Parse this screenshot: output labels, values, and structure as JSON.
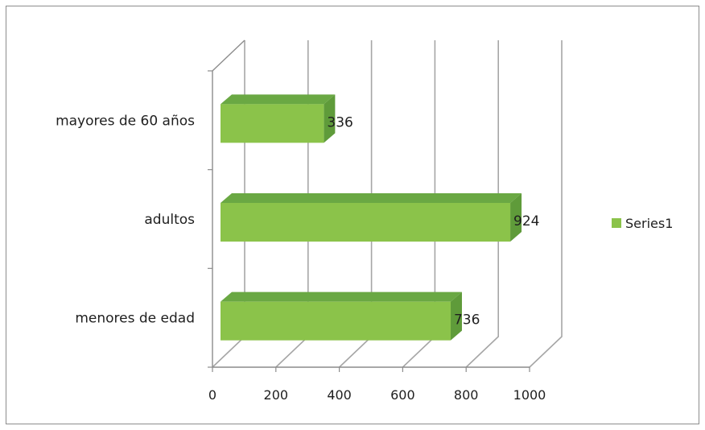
{
  "chart_data": {
    "type": "bar",
    "orientation": "horizontal",
    "style": "3d",
    "categories": [
      "menores de edad",
      "adultos",
      "mayores de 60 años"
    ],
    "series": [
      {
        "name": "Series1",
        "values": [
          736,
          924,
          336
        ]
      }
    ],
    "xticks": [
      "0",
      "200",
      "400",
      "600",
      "800",
      "1000"
    ],
    "xlim": [
      0,
      1000
    ],
    "grid": true,
    "legend_position": "right",
    "bar_color": "#8bc34a",
    "bar_side_color": "#5f9b3a",
    "bar_top_color": "#6aa843",
    "data_labels": true
  }
}
